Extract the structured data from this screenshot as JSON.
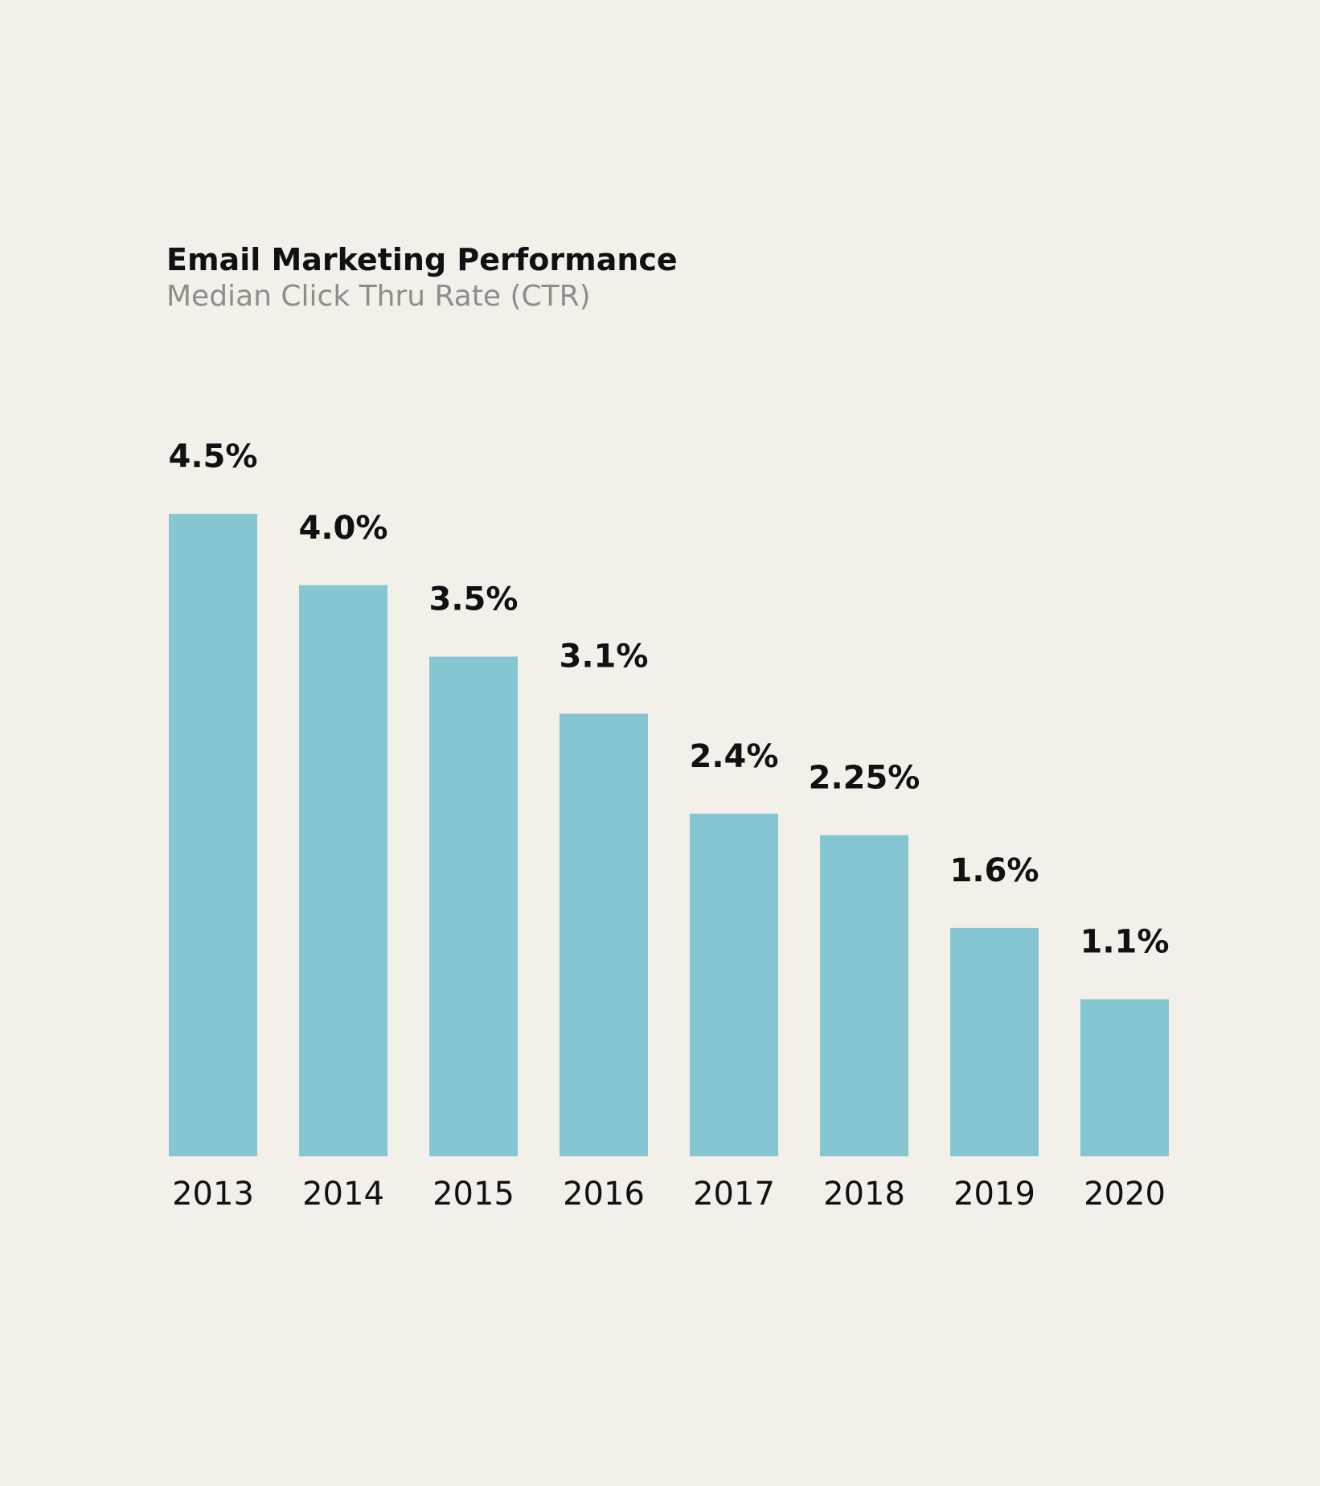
{
  "header": {
    "title": "Email Marketing Performance",
    "subtitle": "Median Click Thru Rate (CTR)"
  },
  "colors": {
    "background": "#f3f0ea",
    "bar": "#85c6d2",
    "text": "#111111",
    "subtitle": "#8f8d89"
  },
  "chart_data": {
    "type": "bar",
    "title": "Email Marketing Performance",
    "subtitle": "Median Click Thru Rate (CTR)",
    "xlabel": "",
    "ylabel": "",
    "categories": [
      "2013",
      "2014",
      "2015",
      "2016",
      "2017",
      "2018",
      "2019",
      "2020"
    ],
    "values": [
      4.5,
      4.0,
      3.5,
      3.1,
      2.4,
      2.25,
      1.6,
      1.1
    ],
    "value_labels": [
      "4.5%",
      "4.0%",
      "3.5%",
      "3.1%",
      "2.4%",
      "2.25%",
      "1.6%",
      "1.1%"
    ],
    "ylim": [
      0,
      4.5
    ],
    "grid": false,
    "legend": "none"
  }
}
